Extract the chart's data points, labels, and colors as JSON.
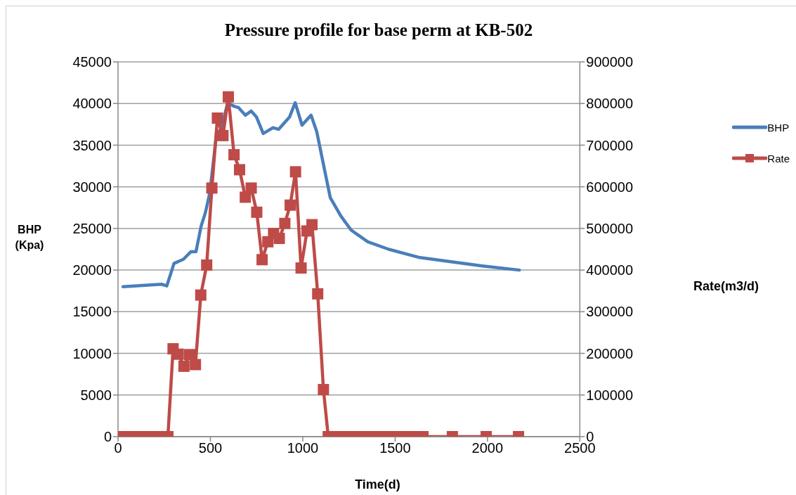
{
  "chart_data": {
    "type": "line",
    "title": "Pressure profile for base perm at KB-502",
    "xlabel": "Time(d)",
    "ylabel": "BHP (Kpa)",
    "y2label": "Rate(m3/d)",
    "xlim": [
      0,
      2500
    ],
    "xticks": [
      0,
      500,
      1000,
      1500,
      2000,
      2500
    ],
    "ylim": [
      0,
      45000
    ],
    "yticks": [
      0,
      5000,
      10000,
      15000,
      20000,
      25000,
      30000,
      35000,
      40000,
      45000
    ],
    "y2lim": [
      0,
      900000
    ],
    "y2ticks": [
      0,
      100000,
      200000,
      300000,
      400000,
      500000,
      600000,
      700000,
      800000,
      900000
    ],
    "grid": "y",
    "legend": "right",
    "series": [
      {
        "name": "BHP",
        "color": "#4a7ebb",
        "marker": "none",
        "x": [
          27,
          236,
          264,
          303,
          354,
          394,
          422,
          450,
          473,
          497,
          529,
          563,
          594,
          625,
          653,
          689,
          721,
          749,
          786,
          839,
          869,
          929,
          959,
          996,
          1045,
          1076,
          1110,
          1149,
          1206,
          1262,
          1352,
          1465,
          1634,
          1803,
          1972,
          2173
        ],
        "values": [
          18000,
          18300,
          18100,
          20800,
          21300,
          22200,
          22200,
          25300,
          26900,
          29300,
          35500,
          37400,
          40100,
          39700,
          39500,
          38600,
          39100,
          38400,
          36400,
          37100,
          36900,
          38400,
          40100,
          37400,
          38600,
          36600,
          32900,
          28700,
          26500,
          24800,
          23400,
          22500,
          21500,
          21000,
          20500,
          20000
        ]
      },
      {
        "name": "Rate",
        "color": "#be4b48",
        "marker": "square",
        "axis": "y2",
        "x": [
          30,
          57,
          84,
          111,
          138,
          165,
          192,
          219,
          246,
          270,
          298,
          326,
          357,
          388,
          419,
          448,
          480,
          508,
          538,
          568,
          597,
          628,
          658,
          689,
          721,
          751,
          780,
          811,
          842,
          873,
          903,
          932,
          961,
          991,
          1023,
          1050,
          1081,
          1112,
          1138,
          1165,
          1192,
          1219,
          1246,
          1273,
          1300,
          1327,
          1354,
          1381,
          1408,
          1435,
          1462,
          1489,
          1516,
          1543,
          1570,
          1597,
          1624,
          1651,
          1810,
          1993,
          2168
        ],
        "values": [
          0,
          0,
          0,
          0,
          0,
          0,
          0,
          0,
          0,
          0,
          211000,
          198000,
          169000,
          197000,
          173000,
          340000,
          412000,
          597000,
          765000,
          723000,
          816000,
          677000,
          641000,
          575000,
          597000,
          539000,
          425000,
          468000,
          488000,
          476000,
          512000,
          556000,
          636000,
          405000,
          494000,
          509000,
          343000,
          113000,
          0,
          0,
          0,
          0,
          0,
          0,
          0,
          0,
          0,
          0,
          0,
          0,
          0,
          0,
          0,
          0,
          0,
          0,
          0,
          0,
          0,
          0,
          0
        ]
      }
    ]
  }
}
